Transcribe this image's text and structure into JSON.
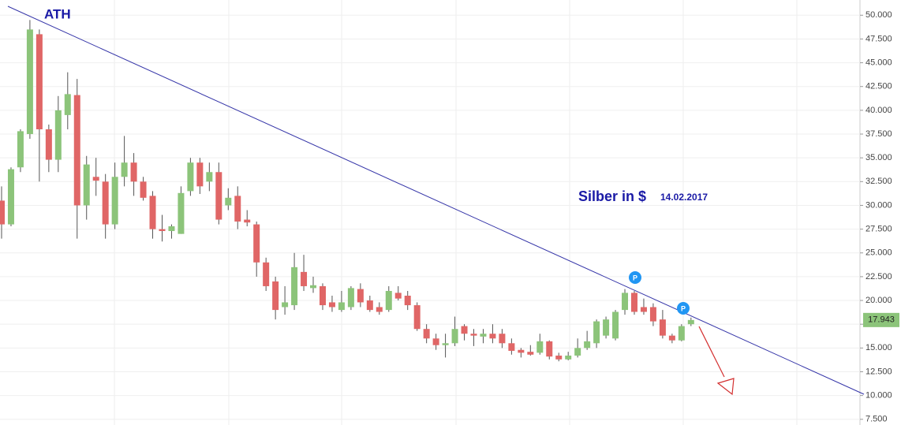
{
  "chart_data": {
    "type": "candlestick",
    "annotations": {
      "ath": "ATH",
      "title": "Silber in $",
      "date": "14.02.2017",
      "marker": "P"
    },
    "up_color": "#8cc47a",
    "down_color": "#e06666",
    "trendline_color": "#3535a8",
    "grid": true,
    "ylim": [
      6.9,
      51.6
    ],
    "yticks": [
      {
        "value": 7.5,
        "label": "7.500"
      },
      {
        "value": 10,
        "label": "10.000"
      },
      {
        "value": 12.5,
        "label": "12.500"
      },
      {
        "value": 15,
        "label": "15.000"
      },
      {
        "value": 17.5,
        "label": "17.500"
      },
      {
        "value": 20,
        "label": "20.000"
      },
      {
        "value": 22.5,
        "label": "22.500"
      },
      {
        "value": 25,
        "label": "25.000"
      },
      {
        "value": 27.5,
        "label": "27.500"
      },
      {
        "value": 30,
        "label": "30.000"
      },
      {
        "value": 32.5,
        "label": "32.500"
      },
      {
        "value": 35,
        "label": "35.000"
      },
      {
        "value": 37.5,
        "label": "37.500"
      },
      {
        "value": 40,
        "label": "40.000"
      },
      {
        "value": 42.5,
        "label": "42.500"
      },
      {
        "value": 45,
        "label": "45.000"
      },
      {
        "value": 47.5,
        "label": "47.500"
      },
      {
        "value": 50,
        "label": "50.000"
      }
    ],
    "last_price": {
      "value": 17.943,
      "label": "17.943"
    },
    "open": [
      30.5,
      28,
      34,
      37.5,
      48,
      38,
      34.8,
      39.5,
      41.6,
      30,
      33,
      32.5,
      28,
      33,
      34.5,
      32.5,
      31,
      27.5,
      27.3,
      27,
      31.5,
      34.5,
      32.5,
      33.5,
      30,
      31,
      28.5,
      28,
      24,
      22,
      19.3,
      19.5,
      23,
      21.3,
      21.5,
      19.8,
      19,
      19.3,
      21.2,
      20,
      19.3,
      19,
      20.8,
      20.5,
      19.5,
      17,
      16,
      15.3,
      15.5,
      17.3,
      16.5,
      16.2,
      16.5,
      16.5,
      15.5,
      14.8,
      14.6,
      14.5,
      15.7,
      14.2,
      13.8,
      14.2,
      15,
      15.5,
      16.3,
      16,
      19,
      20.8,
      19.3,
      19.3,
      18,
      16.3,
      15.8,
      17.5
    ],
    "high": [
      32,
      34,
      38,
      49.5,
      48.5,
      38.5,
      41.5,
      44,
      43.3,
      35.2,
      35,
      33.3,
      34.5,
      37.3,
      35.5,
      33,
      31.5,
      29,
      28,
      32,
      35,
      35,
      34.5,
      34.5,
      31.8,
      32,
      29.5,
      28.3,
      24.5,
      22.5,
      21.5,
      25,
      24.8,
      22.5,
      21.8,
      20.5,
      21,
      21.5,
      21.8,
      20.5,
      19.8,
      21.5,
      21.5,
      21,
      19.8,
      17.5,
      16.5,
      16.5,
      18.3,
      17.5,
      17,
      17,
      17.5,
      17,
      16,
      15,
      15.3,
      16.5,
      15.8,
      14.5,
      14.6,
      16,
      16.8,
      18,
      18.3,
      19,
      21.2,
      21,
      20.2,
      19.7,
      19,
      16.5,
      17.5,
      18.2
    ],
    "low": [
      26.5,
      27.8,
      33.5,
      37,
      32.5,
      33.5,
      33.5,
      38,
      26.5,
      28.5,
      31,
      26.5,
      27.5,
      32,
      31,
      30.5,
      26.5,
      26.2,
      26.5,
      27,
      31,
      31.2,
      31.5,
      28,
      29.5,
      27.5,
      27.8,
      22.5,
      21,
      18,
      18.5,
      19,
      21,
      20.8,
      19,
      18.8,
      18.8,
      19,
      19.3,
      18.8,
      18.5,
      18.8,
      20,
      19,
      16.8,
      15.5,
      14.8,
      14,
      15.2,
      15.8,
      15.2,
      15.5,
      15.5,
      15,
      14.3,
      14,
      14.2,
      14.3,
      13.8,
      13.6,
      13.7,
      14,
      14.8,
      15,
      16,
      15.8,
      18.5,
      18.5,
      18.5,
      17.3,
      16,
      15.5,
      15.7,
      17.3
    ],
    "close": [
      28,
      33.8,
      37.8,
      48.5,
      38,
      34.8,
      40,
      41.7,
      30,
      34.3,
      32.6,
      28,
      33,
      34.5,
      32.5,
      30.8,
      27.5,
      27.3,
      27.8,
      31.3,
      34.5,
      32,
      33.5,
      28.5,
      30.8,
      28.3,
      28.2,
      24,
      21.5,
      19,
      19.8,
      23.5,
      21.5,
      21.6,
      19.5,
      19.3,
      19.8,
      21.3,
      19.8,
      19,
      18.8,
      21,
      20.2,
      19.5,
      17,
      16,
      15.3,
      15.5,
      17,
      16.5,
      16.3,
      16.5,
      16,
      15.5,
      14.7,
      14.5,
      14.3,
      15.7,
      14.1,
      13.8,
      14.2,
      15,
      15.7,
      17.8,
      18,
      18.8,
      20.8,
      18.8,
      18.8,
      17.8,
      16.3,
      15.8,
      17.3,
      17.943
    ]
  }
}
